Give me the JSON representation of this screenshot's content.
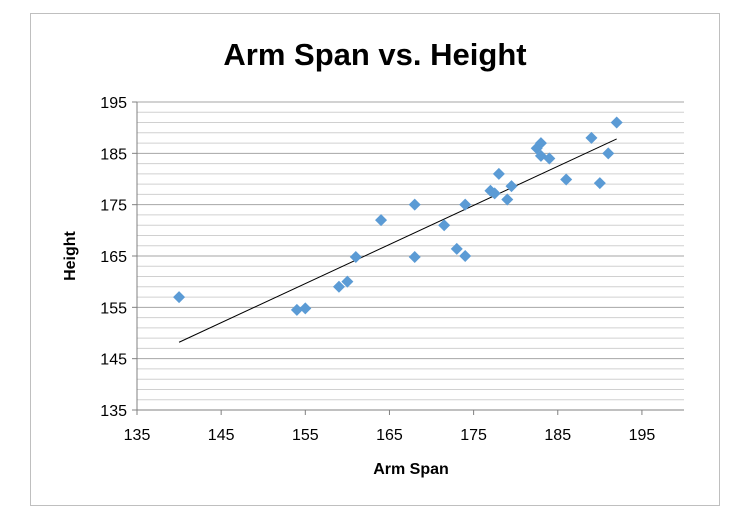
{
  "chart_data": {
    "type": "scatter",
    "title": "Arm Span vs. Height",
    "xlabel": "Arm Span",
    "ylabel": "Height",
    "xlim": [
      135,
      200
    ],
    "ylim": [
      135,
      195
    ],
    "xticks": [
      "135",
      "145",
      "155",
      "165",
      "175",
      "185",
      "195"
    ],
    "yticks": [
      "195",
      "185",
      "175",
      "165",
      "155",
      "145",
      "135"
    ],
    "x_tick_values": [
      135,
      145,
      155,
      165,
      175,
      185,
      195
    ],
    "y_tick_values": [
      195,
      185,
      175,
      165,
      155,
      145,
      135
    ],
    "minor_grid_step": 2,
    "grid": true,
    "marker": "diamond",
    "marker_color": "#5b9bd5",
    "trendline": {
      "type": "linear",
      "color": "#000000",
      "x_range": [
        140,
        192
      ],
      "y_range": [
        148.2,
        187.8
      ]
    },
    "series": [
      {
        "values": [
          {
            "x": 140,
            "y": 157
          },
          {
            "x": 154,
            "y": 154.5
          },
          {
            "x": 155,
            "y": 154.8
          },
          {
            "x": 159,
            "y": 159
          },
          {
            "x": 160,
            "y": 160
          },
          {
            "x": 161,
            "y": 164.8
          },
          {
            "x": 164,
            "y": 172
          },
          {
            "x": 168,
            "y": 175
          },
          {
            "x": 168,
            "y": 164.8
          },
          {
            "x": 171.5,
            "y": 171
          },
          {
            "x": 173,
            "y": 166.4
          },
          {
            "x": 174,
            "y": 165
          },
          {
            "x": 174,
            "y": 175
          },
          {
            "x": 177,
            "y": 177.7
          },
          {
            "x": 177.5,
            "y": 177.2
          },
          {
            "x": 178,
            "y": 181
          },
          {
            "x": 179,
            "y": 176
          },
          {
            "x": 179.5,
            "y": 178.6
          },
          {
            "x": 182.5,
            "y": 186
          },
          {
            "x": 183,
            "y": 187
          },
          {
            "x": 183,
            "y": 184.5
          },
          {
            "x": 184,
            "y": 184
          },
          {
            "x": 186,
            "y": 179.9
          },
          {
            "x": 189,
            "y": 188
          },
          {
            "x": 190,
            "y": 179.2
          },
          {
            "x": 191,
            "y": 185
          },
          {
            "x": 192,
            "y": 191
          }
        ]
      }
    ]
  }
}
